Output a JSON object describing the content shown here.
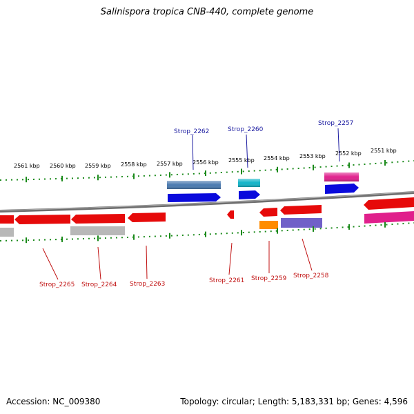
{
  "title": "Salinispora tropica CNB-440, complete genome",
  "footer": {
    "accession": "Accession: NC_009380",
    "summary": "Topology: circular; Length: 5,183,331 bp; Genes: 4,596"
  },
  "colors": {
    "backbone": "#777777",
    "tick": "#1a8a1a",
    "forward_label": "#1a1aa0",
    "reverse_label": "#c01010",
    "red": "#e60a0a",
    "gray": "#b8b8b8",
    "steelblue": "#4a7ab0",
    "blue": "#0a0adc",
    "cyan": "#12b4c8",
    "magenta": "#e0208c",
    "orange": "#ff8c00",
    "purple": "#7060c8"
  },
  "scale_labels": [
    "2561 kbp",
    "2560 kbp",
    "2559 kbp",
    "2558 kbp",
    "2557 kbp",
    "2556 kbp",
    "2555 kbp",
    "2554 kbp",
    "2553 kbp",
    "2552 kbp",
    "2551 kbp"
  ],
  "forward_labels": [
    "Strop_2262",
    "Strop_2260",
    "Strop_2257"
  ],
  "reverse_labels": [
    "Strop_2265",
    "Strop_2264",
    "Strop_2263",
    "Strop_2261",
    "Strop_2259",
    "Strop_2258"
  ]
}
